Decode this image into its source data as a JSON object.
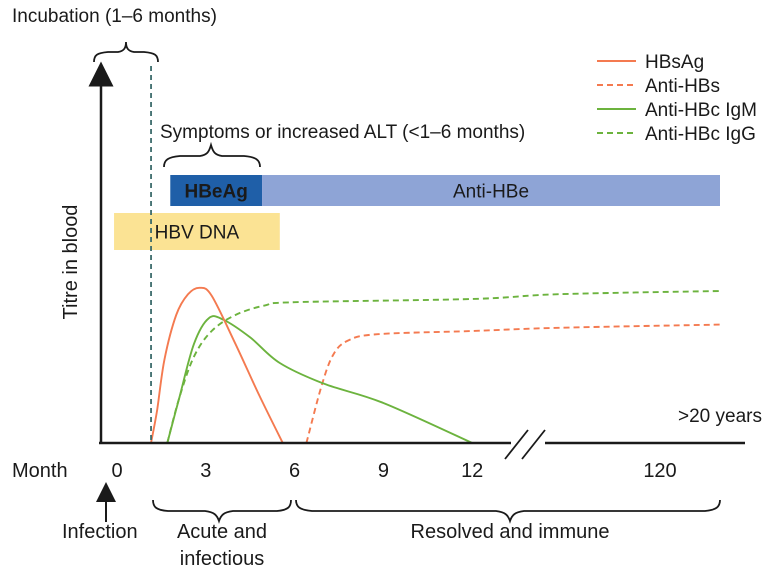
{
  "chart_data": {
    "type": "line",
    "xlabel": "Month",
    "ylabel": "Titre in blood",
    "x_ticks": [
      {
        "label": "0",
        "value": 0
      },
      {
        "label": "3",
        "value": 3
      },
      {
        "label": "6",
        "value": 6
      },
      {
        "label": "9",
        "value": 9
      },
      {
        "label": "12",
        "value": 12
      },
      {
        "label": "120",
        "value": 120
      }
    ],
    "axis_break_note": ">20 years",
    "y_range": [
      0,
      100
    ],
    "series": [
      {
        "name": "HBsAg",
        "color": "#f47a50",
        "style": "solid",
        "points": [
          [
            1.15,
            0
          ],
          [
            1.35,
            20
          ],
          [
            1.6,
            52
          ],
          [
            2.0,
            80
          ],
          [
            2.4,
            93
          ],
          [
            2.8,
            97
          ],
          [
            3.2,
            92
          ],
          [
            4.0,
            62
          ],
          [
            4.8,
            30
          ],
          [
            5.6,
            0
          ]
        ]
      },
      {
        "name": "Anti-HBs",
        "color": "#f47a50",
        "style": "dashed",
        "points": [
          [
            6.4,
            0
          ],
          [
            6.9,
            35
          ],
          [
            7.3,
            55
          ],
          [
            7.8,
            64
          ],
          [
            8.8,
            68
          ],
          [
            12,
            70
          ],
          [
            60,
            72
          ],
          [
            132,
            74
          ]
        ]
      },
      {
        "name": "Anti-HBc IgM",
        "color": "#6cb33e",
        "style": "solid",
        "points": [
          [
            1.7,
            0
          ],
          [
            2.1,
            28
          ],
          [
            2.6,
            62
          ],
          [
            3.1,
            78
          ],
          [
            3.6,
            77
          ],
          [
            4.5,
            66
          ],
          [
            5.5,
            50
          ],
          [
            7,
            37
          ],
          [
            9,
            25
          ],
          [
            12,
            0
          ]
        ]
      },
      {
        "name": "Anti-HBc IgG",
        "color": "#6cb33e",
        "style": "dashed",
        "points": [
          [
            1.7,
            0
          ],
          [
            2.1,
            28
          ],
          [
            2.6,
            54
          ],
          [
            3.2,
            70
          ],
          [
            4.0,
            80
          ],
          [
            5.0,
            86
          ],
          [
            6,
            88
          ],
          [
            12,
            90
          ],
          [
            60,
            93
          ],
          [
            132,
            95
          ]
        ]
      }
    ],
    "bars": [
      {
        "label": "HBeAg",
        "start": 1.8,
        "end": 4.9,
        "color": "#1f5fa8",
        "text_color": "#ffffff"
      },
      {
        "label": "Anti-HBe",
        "start": 4.9,
        "end": 132,
        "color": "#8ea4d6",
        "text_color": "#1a1a1a"
      },
      {
        "label": "HBV DNA",
        "start": -0.1,
        "end": 5.5,
        "color": "#fbe394",
        "text_color": "#1a1a1a"
      }
    ],
    "incubation_line_x": 1.15,
    "annotations": {
      "incubation": "Incubation (1–6 months)",
      "symptoms": "Symptoms or increased ALT (<1–6 months)",
      "infection": "Infection",
      "acute": [
        "Acute and",
        "infectious"
      ],
      "resolved": "Resolved and immune"
    },
    "legend_position": "top-right"
  }
}
